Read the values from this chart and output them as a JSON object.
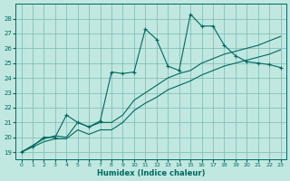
{
  "xlabel": "Humidex (Indice chaleur)",
  "bg_color": "#c0e8e0",
  "grid_color": "#7ab8b0",
  "line_color": "#006860",
  "xlim": [
    -0.5,
    23.5
  ],
  "ylim": [
    18.5,
    29.0
  ],
  "xticks": [
    0,
    1,
    2,
    3,
    4,
    5,
    6,
    7,
    8,
    9,
    10,
    11,
    12,
    13,
    14,
    15,
    16,
    17,
    18,
    19,
    20,
    21,
    22,
    23
  ],
  "yticks": [
    19,
    20,
    21,
    22,
    23,
    24,
    25,
    26,
    27,
    28
  ],
  "line1_x": [
    0,
    1,
    2,
    3,
    4,
    5,
    6,
    7,
    8,
    9,
    10,
    11,
    12,
    13,
    14,
    15,
    16,
    17,
    18,
    19,
    20,
    21,
    22,
    23
  ],
  "line1_y": [
    19.0,
    19.4,
    20.0,
    20.0,
    21.5,
    21.0,
    20.7,
    21.1,
    24.4,
    24.3,
    24.4,
    27.3,
    26.6,
    24.8,
    24.5,
    28.3,
    27.5,
    27.5,
    26.2,
    25.5,
    25.1,
    25.0,
    24.9,
    24.7
  ],
  "line2_x": [
    0,
    2,
    3,
    4,
    5,
    6,
    7,
    8,
    9,
    10,
    11,
    12,
    13,
    14,
    15,
    16,
    17,
    18,
    19,
    20,
    21,
    22,
    23
  ],
  "line2_y": [
    19.0,
    19.9,
    20.1,
    20.0,
    21.0,
    20.7,
    21.0,
    21.0,
    21.5,
    22.5,
    23.0,
    23.5,
    24.0,
    24.3,
    24.5,
    25.0,
    25.3,
    25.6,
    25.8,
    26.0,
    26.2,
    26.5,
    26.8
  ],
  "line3_x": [
    0,
    2,
    3,
    4,
    5,
    6,
    7,
    8,
    9,
    10,
    11,
    12,
    13,
    14,
    15,
    16,
    17,
    18,
    19,
    20,
    21,
    22,
    23
  ],
  "line3_y": [
    19.0,
    19.7,
    19.9,
    19.9,
    20.5,
    20.2,
    20.5,
    20.5,
    21.0,
    21.8,
    22.3,
    22.7,
    23.2,
    23.5,
    23.8,
    24.2,
    24.5,
    24.8,
    25.0,
    25.2,
    25.4,
    25.6,
    25.9
  ]
}
